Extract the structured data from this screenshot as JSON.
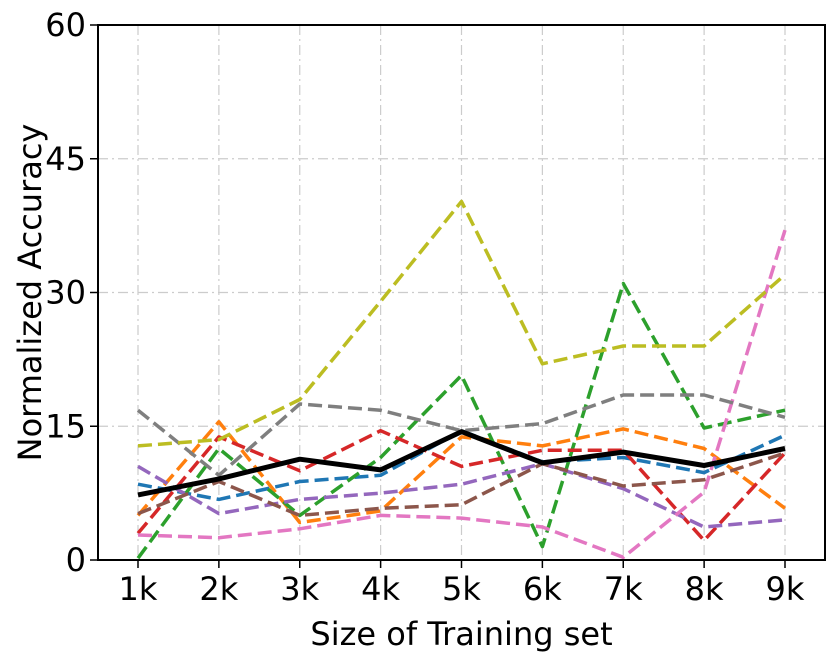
{
  "chart_data": {
    "type": "line",
    "title": "",
    "xlabel": "Size of Training set",
    "ylabel": "Normalized Accuracy",
    "categories": [
      "1k",
      "2k",
      "3k",
      "4k",
      "5k",
      "6k",
      "7k",
      "8k",
      "9k"
    ],
    "ylim": [
      0,
      60
    ],
    "yticks": [
      0,
      15,
      30,
      45,
      60
    ],
    "grid": true,
    "legend": "none",
    "series": [
      {
        "color": "#1f77b4",
        "style": "dashed",
        "values": [
          8.5,
          6.8,
          8.8,
          9.5,
          14.5,
          11.0,
          11.5,
          9.8,
          14.0
        ]
      },
      {
        "color": "#ff7f0e",
        "style": "dashed",
        "values": [
          5.0,
          15.5,
          4.2,
          5.5,
          13.8,
          12.8,
          14.7,
          12.5,
          5.8
        ]
      },
      {
        "color": "#2ca02c",
        "style": "dashed",
        "values": [
          0.2,
          12.5,
          5.0,
          11.5,
          20.7,
          1.5,
          31.0,
          14.8,
          16.8
        ]
      },
      {
        "color": "#d62728",
        "style": "dashed",
        "values": [
          3.0,
          13.8,
          10.0,
          14.5,
          10.5,
          12.3,
          12.3,
          2.2,
          12.0
        ]
      },
      {
        "color": "#9467bd",
        "style": "dashed",
        "values": [
          10.5,
          5.2,
          6.8,
          7.5,
          8.5,
          10.8,
          8.0,
          3.7,
          4.5
        ]
      },
      {
        "color": "#8c564b",
        "style": "dashed",
        "values": [
          5.2,
          8.8,
          5.0,
          5.8,
          6.2,
          10.8,
          8.3,
          9.0,
          12.0
        ]
      },
      {
        "color": "#e377c2",
        "style": "dashed",
        "values": [
          2.8,
          2.5,
          3.5,
          5.0,
          4.7,
          3.7,
          0.3,
          7.6,
          37.0
        ]
      },
      {
        "color": "#7f7f7f",
        "style": "dashed",
        "values": [
          16.8,
          9.5,
          17.5,
          16.8,
          14.5,
          15.3,
          18.5,
          18.5,
          16.0
        ]
      },
      {
        "color": "#bcbd22",
        "style": "dashed",
        "values": [
          12.8,
          13.5,
          18.0,
          29.0,
          40.2,
          22.0,
          24.0,
          24.0,
          32.0
        ]
      },
      {
        "color": "#000000",
        "style": "solid",
        "values": [
          7.3,
          9.1,
          11.3,
          10.1,
          14.4,
          10.9,
          12.1,
          10.6,
          12.5
        ]
      }
    ]
  }
}
